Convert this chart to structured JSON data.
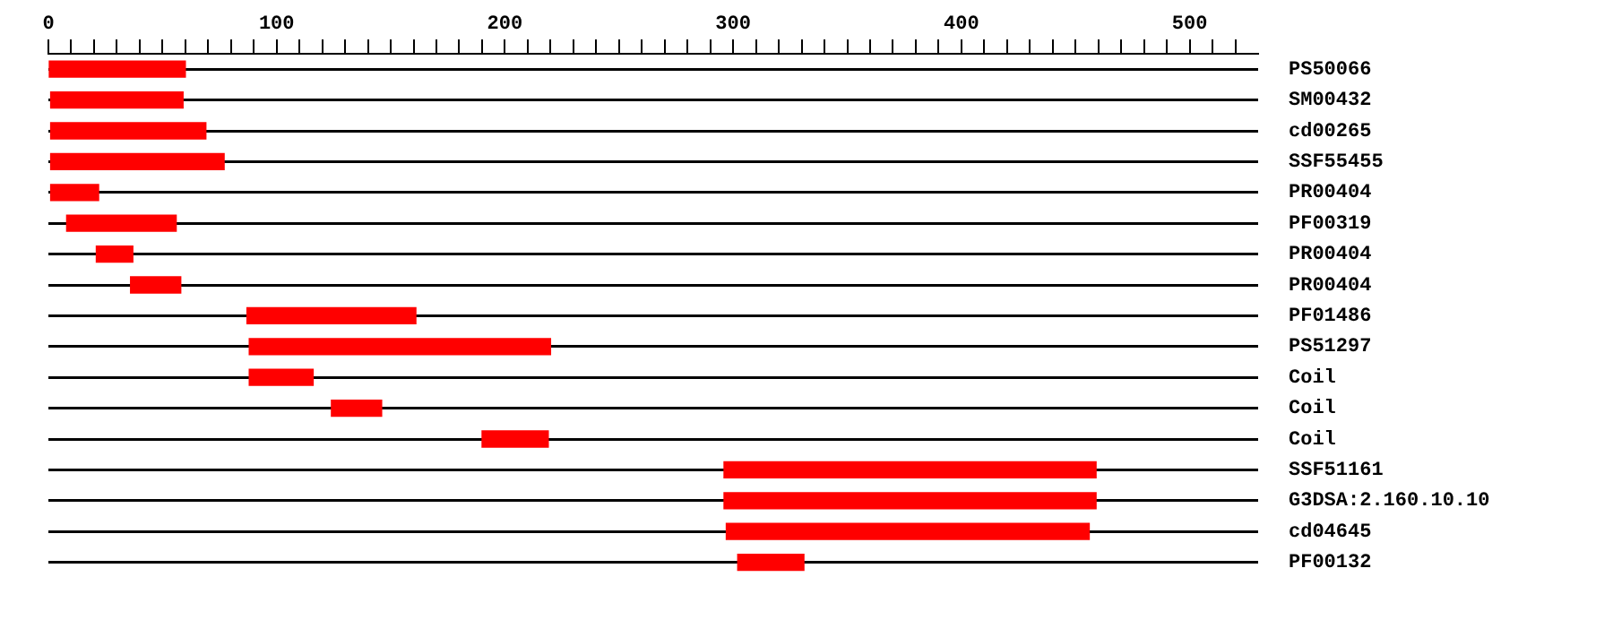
{
  "chart_data": {
    "type": "bar",
    "orientation": "horizontal",
    "categories": [
      "PS50066",
      "SM00432",
      "cd00265",
      "SSF55455",
      "PR00404",
      "PF00319",
      "PR00404",
      "PR00404",
      "PF01486",
      "PS51297",
      "Coil",
      "Coil",
      "Coil",
      "SSF51161",
      "G3DSA:2.160.10.10",
      "cd04645",
      "PF00132"
    ],
    "base": [
      0,
      1,
      1,
      1,
      1,
      8,
      21,
      36,
      87,
      88,
      88,
      124,
      190,
      296,
      296,
      297,
      302
    ],
    "values": [
      60,
      58,
      68,
      76,
      21,
      48,
      16,
      22,
      74,
      132,
      28,
      22,
      29,
      163,
      163,
      159,
      29
    ],
    "color": "#ff0000",
    "xlim": [
      0,
      530
    ],
    "xticks": [
      0,
      {
        "value": 10,
        "label": null
      },
      {
        "value": 20,
        "label": null
      },
      {
        "value": 30,
        "label": null
      },
      {
        "value": 40,
        "label": null
      },
      {
        "value": 50,
        "label": null
      },
      {
        "value": 60,
        "label": null
      },
      {
        "value": 70,
        "label": null
      },
      {
        "value": 80,
        "label": null
      },
      {
        "value": 90,
        "label": null
      },
      100,
      {
        "value": 110,
        "label": null
      },
      {
        "value": 120,
        "label": null
      },
      {
        "value": 130,
        "label": null
      },
      {
        "value": 140,
        "label": null
      },
      {
        "value": 150,
        "label": null
      },
      {
        "value": 160,
        "label": null
      },
      {
        "value": 170,
        "label": null
      },
      {
        "value": 180,
        "label": null
      },
      {
        "value": 190,
        "label": null
      },
      200,
      {
        "value": 210,
        "label": null
      },
      {
        "value": 220,
        "label": null
      },
      {
        "value": 230,
        "label": null
      },
      {
        "value": 240,
        "label": null
      },
      {
        "value": 250,
        "label": null
      },
      {
        "value": 260,
        "label": null
      },
      {
        "value": 270,
        "label": null
      },
      {
        "value": 280,
        "label": null
      },
      {
        "value": 290,
        "label": null
      },
      300,
      {
        "value": 310,
        "label": null
      },
      {
        "value": 320,
        "label": null
      },
      {
        "value": 330,
        "label": null
      },
      {
        "value": 340,
        "label": null
      },
      {
        "value": 350,
        "label": null
      },
      {
        "value": 360,
        "label": null
      },
      {
        "value": 370,
        "label": null
      },
      {
        "value": 380,
        "label": null
      },
      {
        "value": 390,
        "label": null
      },
      400,
      {
        "value": 410,
        "label": null
      },
      {
        "value": 420,
        "label": null
      },
      {
        "value": 430,
        "label": null
      },
      {
        "value": 440,
        "label": null
      },
      {
        "value": 450,
        "label": null
      },
      {
        "value": 460,
        "label": null
      },
      {
        "value": 470,
        "label": null
      },
      {
        "value": 480,
        "label": null
      },
      {
        "value": 490,
        "label": null
      },
      500,
      {
        "value": 510,
        "label": null
      },
      {
        "value": 520,
        "label": null
      }
    ],
    "grid": "y"
  }
}
